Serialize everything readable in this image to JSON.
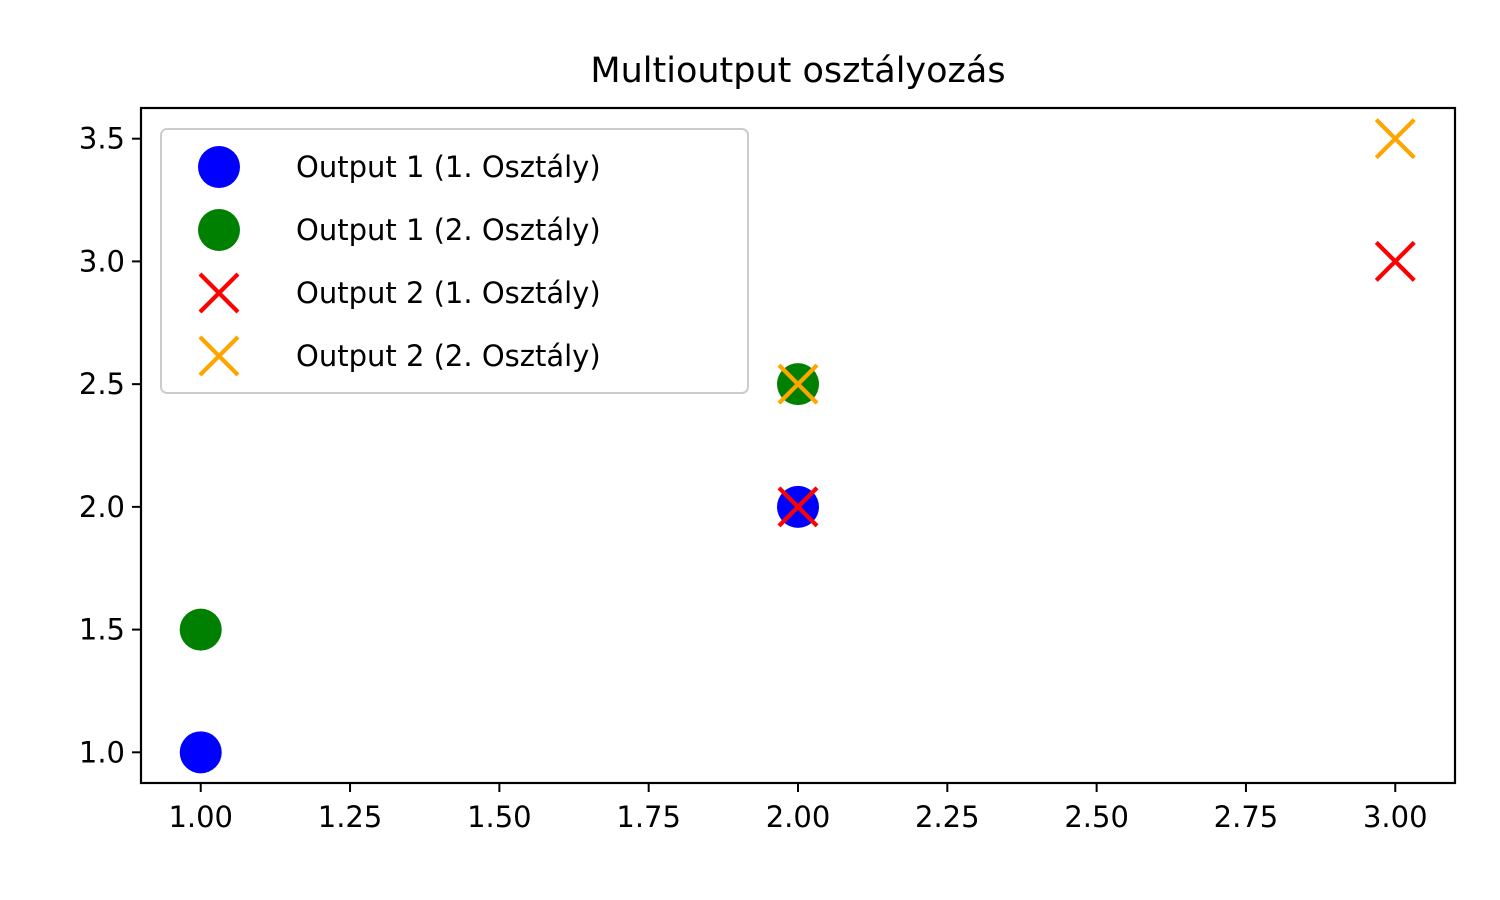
{
  "chart_data": {
    "type": "scatter",
    "title": "Multioutput osztályozás",
    "xlabel": "",
    "ylabel": "",
    "xlim": [
      0.9,
      3.1
    ],
    "ylim": [
      0.875,
      3.625
    ],
    "xticks": [
      1.0,
      1.25,
      1.5,
      1.75,
      2.0,
      2.25,
      2.5,
      2.75,
      3.0
    ],
    "xtick_labels": [
      "1.00",
      "1.25",
      "1.50",
      "1.75",
      "2.00",
      "2.25",
      "2.50",
      "2.75",
      "3.00"
    ],
    "yticks": [
      1.0,
      1.5,
      2.0,
      2.5,
      3.0,
      3.5
    ],
    "ytick_labels": [
      "1.0",
      "1.5",
      "2.0",
      "2.5",
      "3.0",
      "3.5"
    ],
    "grid": false,
    "legend_position": "upper-left",
    "series": [
      {
        "name": "Output 1 (1. Osztály)",
        "marker": "circle",
        "color": "#0000ff",
        "x": [
          1,
          2
        ],
        "y": [
          1,
          2
        ]
      },
      {
        "name": "Output 1 (2. Osztály)",
        "marker": "circle",
        "color": "#008000",
        "x": [
          1,
          2
        ],
        "y": [
          1.5,
          2.5
        ]
      },
      {
        "name": "Output 2 (1. Osztály)",
        "marker": "x",
        "color": "#ff0000",
        "x": [
          2,
          3
        ],
        "y": [
          2,
          3
        ]
      },
      {
        "name": "Output 2 (2. Osztály)",
        "marker": "x",
        "color": "#ffa500",
        "x": [
          2,
          3
        ],
        "y": [
          2.5,
          3.5
        ]
      }
    ]
  }
}
